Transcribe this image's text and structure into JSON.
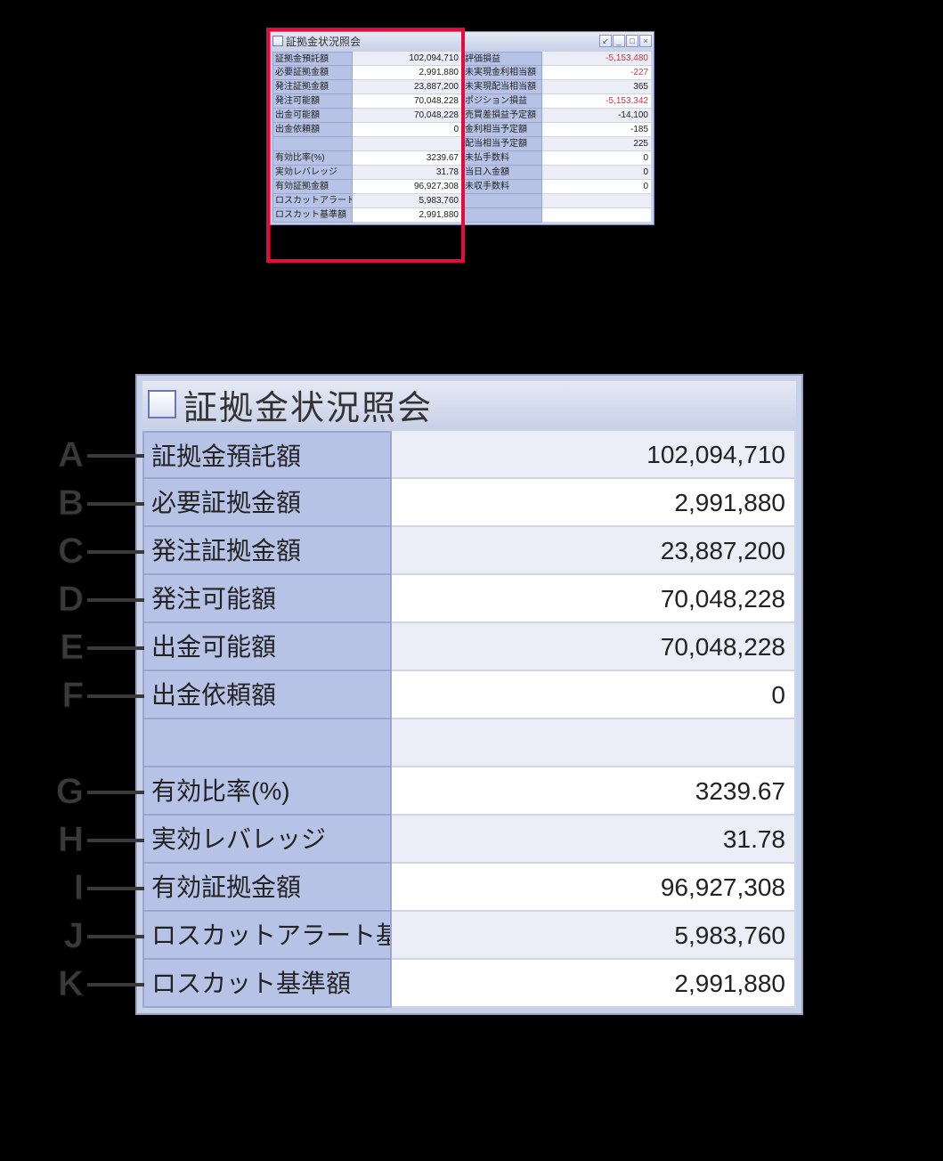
{
  "window": {
    "title": "証拠金状況照会",
    "controls": [
      "↙",
      "_",
      "□",
      "×"
    ]
  },
  "colors": {
    "label_bg": "#b7c3e6",
    "value_bg": "#ffffff",
    "value_alt_bg": "#eceef7",
    "border": "#99a6d0",
    "frame": "#c9d1e8",
    "neg": "#e03040",
    "highlight": "#e40b3e"
  },
  "left_rows": [
    {
      "label": "証拠金預託額",
      "value": "102,094,710"
    },
    {
      "label": "必要証拠金額",
      "value": "2,991,880"
    },
    {
      "label": "発注証拠金額",
      "value": "23,887,200"
    },
    {
      "label": "発注可能額",
      "value": "70,048,228"
    },
    {
      "label": "出金可能額",
      "value": "70,048,228"
    },
    {
      "label": "出金依頼額",
      "value": "0"
    },
    {
      "label": "",
      "value": ""
    },
    {
      "label": "有効比率(%)",
      "value": "3239.67"
    },
    {
      "label": "実効レバレッジ",
      "value": "31.78"
    },
    {
      "label": "有効証拠金額",
      "value": "96,927,308"
    },
    {
      "label": "ロスカットアラート基準額",
      "value": "5,983,760"
    },
    {
      "label": "ロスカット基準額",
      "value": "2,991,880"
    }
  ],
  "right_rows": [
    {
      "label": "評価損益",
      "value": "-5,153,480",
      "neg": true
    },
    {
      "label": "未実現金利相当額",
      "value": "-227",
      "neg": true
    },
    {
      "label": "未実現配当相当額",
      "value": "365"
    },
    {
      "label": "ポジション損益",
      "value": "-5,153,342",
      "neg": true
    },
    {
      "label": "売買差損益予定額",
      "value": "-14,100"
    },
    {
      "label": "金利相当予定額",
      "value": "-185"
    },
    {
      "label": "配当相当予定額",
      "value": "225"
    },
    {
      "label": "未払手数料",
      "value": "0"
    },
    {
      "label": "当日入金額",
      "value": "0"
    },
    {
      "label": "未収手数料",
      "value": "0"
    },
    {
      "label": "",
      "value": ""
    },
    {
      "label": "",
      "value": ""
    }
  ],
  "zoom_rows_indices": [
    0,
    1,
    2,
    3,
    4,
    5,
    6,
    7,
    8,
    9,
    10,
    11
  ],
  "callouts": [
    {
      "letter": "A",
      "row": 0
    },
    {
      "letter": "B",
      "row": 1
    },
    {
      "letter": "C",
      "row": 2
    },
    {
      "letter": "D",
      "row": 3
    },
    {
      "letter": "E",
      "row": 4
    },
    {
      "letter": "F",
      "row": 5
    },
    {
      "letter": "G",
      "row": 7
    },
    {
      "letter": "H",
      "row": 8
    },
    {
      "letter": "I",
      "row": 9
    },
    {
      "letter": "J",
      "row": 10
    },
    {
      "letter": "K",
      "row": 11
    }
  ]
}
